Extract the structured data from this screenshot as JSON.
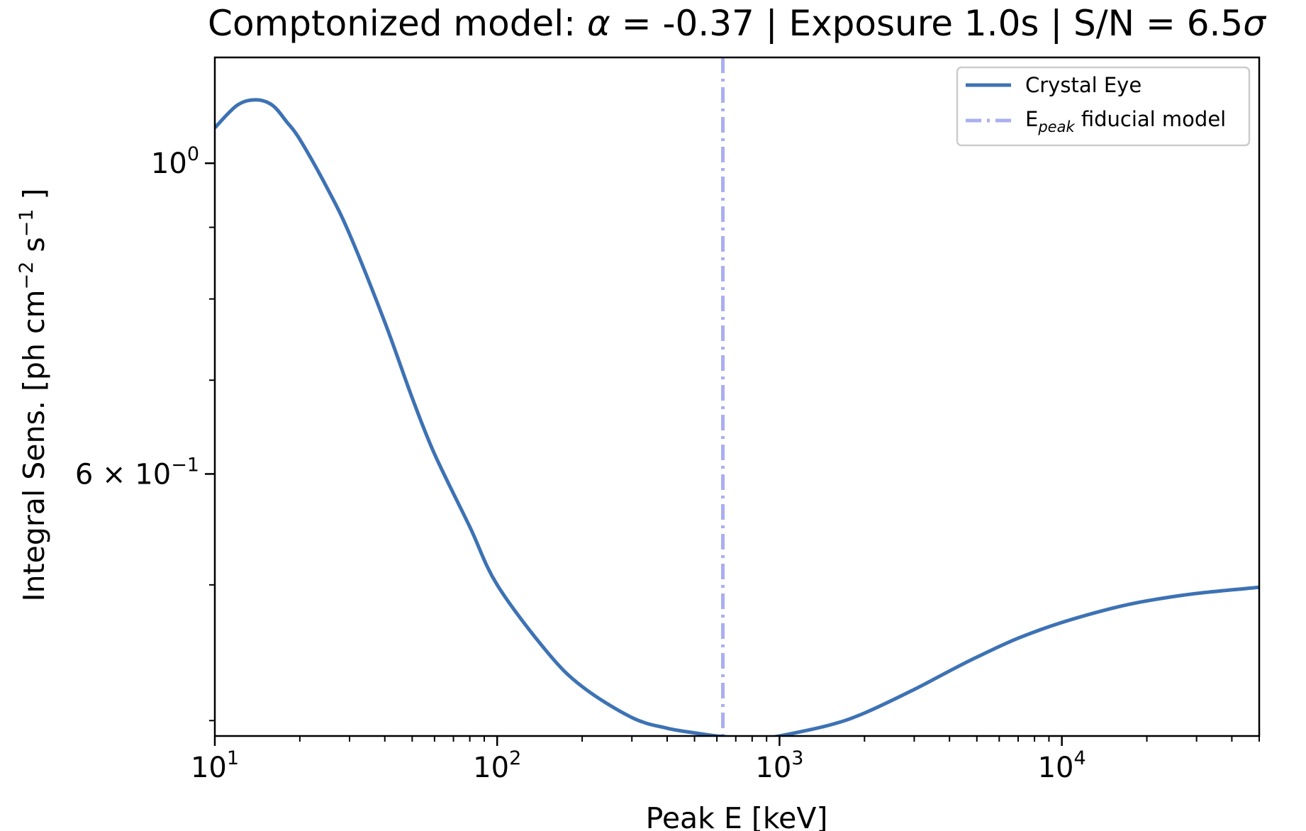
{
  "chart_data": {
    "type": "line",
    "title": "Comptonized model: α = -0.37 | Exposure 1.0s | S/N = 6.5σ",
    "title_parts": {
      "prefix": "Comptonized model: ",
      "alpha_symbol": "α",
      "middle": " = -0.37 | Exposure 1.0s | S/N = 6.5",
      "sigma_symbol": "σ"
    },
    "xlabel": "Peak E [keV]",
    "ylabel_parts": {
      "base": "Integral Sens. [ph cm",
      "exp1": "−2",
      "mid": " s",
      "exp2": "−1",
      "end": " ]"
    },
    "x_scale": "log",
    "y_scale": "log",
    "xlim": [
      10,
      50000
    ],
    "ylim": [
      0.39,
      1.19
    ],
    "x_ticks": [
      {
        "value": 10,
        "base": "10",
        "exp": "1"
      },
      {
        "value": 100,
        "base": "10",
        "exp": "2"
      },
      {
        "value": 1000,
        "base": "10",
        "exp": "3"
      },
      {
        "value": 10000,
        "base": "10",
        "exp": "4"
      }
    ],
    "y_ticks": [
      {
        "value": 1.0,
        "mantissa": "",
        "base": "10",
        "exp": "0"
      },
      {
        "value": 0.6,
        "mantissa": "6 × ",
        "base": "10",
        "exp": "−1"
      }
    ],
    "y_minor_ticks": [
      0.4,
      0.5,
      0.7,
      0.8,
      0.9
    ],
    "series": [
      {
        "name": "Crystal Eye",
        "color": "#3d72b4",
        "x": [
          10,
          12,
          14,
          16,
          18,
          20,
          25,
          30,
          40,
          50,
          60,
          80,
          100,
          150,
          200,
          300,
          400,
          500,
          600,
          700,
          800,
          900,
          1000,
          1500,
          2000,
          3000,
          4000,
          5000,
          7000,
          10000,
          15000,
          20000,
          30000,
          50000
        ],
        "y": [
          1.06,
          1.1,
          1.11,
          1.1,
          1.07,
          1.04,
          0.96,
          0.89,
          0.77,
          0.68,
          0.62,
          0.55,
          0.5,
          0.448,
          0.423,
          0.402,
          0.395,
          0.392,
          0.39,
          0.389,
          0.389,
          0.389,
          0.39,
          0.397,
          0.405,
          0.421,
          0.434,
          0.444,
          0.458,
          0.47,
          0.481,
          0.487,
          0.493,
          0.498
        ]
      }
    ],
    "vline": {
      "name_base": "E",
      "name_sub": "peak",
      "name_rest": " fiducial model",
      "x": 630,
      "color": "#a9aff0",
      "style": "dash-dot"
    },
    "legend_position": "upper right",
    "grid": false
  }
}
